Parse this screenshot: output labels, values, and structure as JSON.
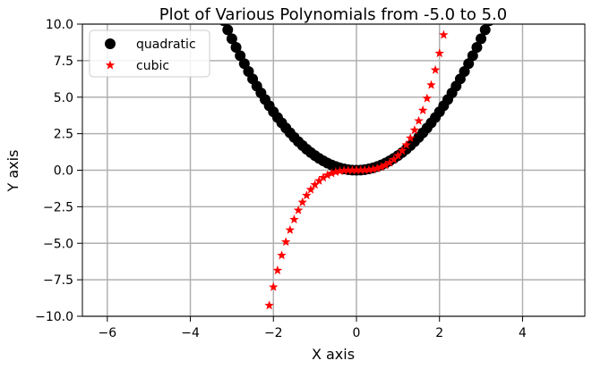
{
  "chart_data": {
    "type": "scatter",
    "title": "Plot of Various Polynomials from -5.0 to 5.0",
    "xlabel": "X axis",
    "ylabel": "Y axis",
    "xlim": [
      -6.6,
      5.5
    ],
    "ylim": [
      -10,
      10
    ],
    "xticks": [
      -6,
      -4,
      -2,
      0,
      2,
      4
    ],
    "xtick_labels": [
      "−6",
      "−4",
      "−2",
      "0",
      "2",
      "4"
    ],
    "yticks": [
      -10,
      -7.5,
      -5,
      -2.5,
      0,
      2.5,
      5,
      7.5,
      10
    ],
    "ytick_labels": [
      "−10.0",
      "−7.5",
      "−5.0",
      "−2.5",
      "0.0",
      "2.5",
      "5.0",
      "7.5",
      "10.0"
    ],
    "grid": true,
    "legend_position": "top-left",
    "x_range": [
      -5.0,
      5.0
    ],
    "point_step": 0.1,
    "series": [
      {
        "name": "quadratic",
        "exponent": 2,
        "marker": "circle",
        "color": "#000000"
      },
      {
        "name": "cubic",
        "exponent": 3,
        "marker": "star",
        "color": "#ff0000"
      }
    ]
  }
}
